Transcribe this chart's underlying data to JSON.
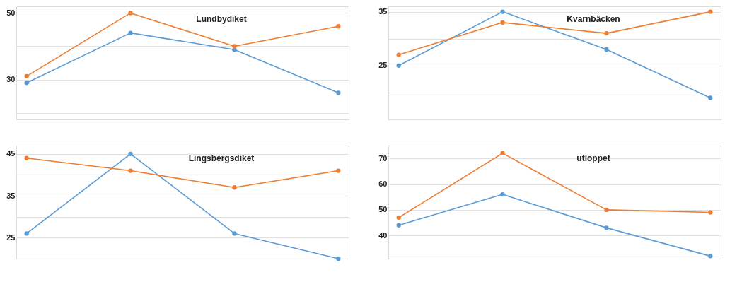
{
  "chart_data": [
    {
      "type": "line",
      "title": "Lundbydiket",
      "categories": [
        null,
        null,
        null,
        null
      ],
      "ylim": [
        18,
        52
      ],
      "yticks": [
        {
          "value": 20,
          "label": null
        },
        30,
        {
          "value": 40,
          "label": null
        },
        50
      ],
      "grid": "y",
      "tick_labels": "y",
      "marker": "circle",
      "line_style": "solid",
      "series": [
        {
          "color": "#5b9bd5",
          "values": [
            29,
            44,
            39,
            26
          ]
        },
        {
          "color": "#ed7d31",
          "values": [
            31,
            50,
            40,
            46
          ]
        }
      ]
    },
    {
      "type": "line",
      "title": "Kvarnbäcken",
      "categories": [
        null,
        null,
        null,
        null
      ],
      "ylim": [
        15,
        36
      ],
      "yticks": [
        {
          "value": 15,
          "label": null
        },
        {
          "value": 20,
          "label": null
        },
        25,
        {
          "value": 30,
          "label": null
        },
        35
      ],
      "grid": "y",
      "tick_labels": "y",
      "marker": "circle",
      "line_style": "solid",
      "series": [
        {
          "color": "#5b9bd5",
          "values": [
            25,
            35,
            28,
            19
          ]
        },
        {
          "color": "#ed7d31",
          "values": [
            27,
            33,
            31,
            35
          ]
        }
      ]
    },
    {
      "type": "line",
      "title": "Lingsbergsdiket",
      "categories": [
        null,
        null,
        null,
        null
      ],
      "ylim": [
        20,
        47
      ],
      "yticks": [
        {
          "value": 20,
          "label": null
        },
        25,
        {
          "value": 30,
          "label": null
        },
        35,
        {
          "value": 40,
          "label": null
        },
        45
      ],
      "grid": "y",
      "tick_labels": "y",
      "marker": "circle",
      "line_style": "solid",
      "series": [
        {
          "color": "#5b9bd5",
          "values": [
            26,
            45,
            26,
            20
          ]
        },
        {
          "color": "#ed7d31",
          "values": [
            44,
            41,
            37,
            41
          ]
        }
      ]
    },
    {
      "type": "line",
      "title": "utloppet",
      "categories": [
        null,
        null,
        null,
        null
      ],
      "ylim": [
        31,
        75
      ],
      "yticks": [
        40,
        50,
        60,
        70
      ],
      "grid": "y",
      "tick_labels": "y",
      "marker": "circle",
      "line_style": "solid",
      "series": [
        {
          "color": "#5b9bd5",
          "values": [
            44,
            56,
            43,
            32
          ]
        },
        {
          "color": "#ed7d31",
          "values": [
            47,
            72,
            50,
            49
          ]
        }
      ]
    }
  ]
}
